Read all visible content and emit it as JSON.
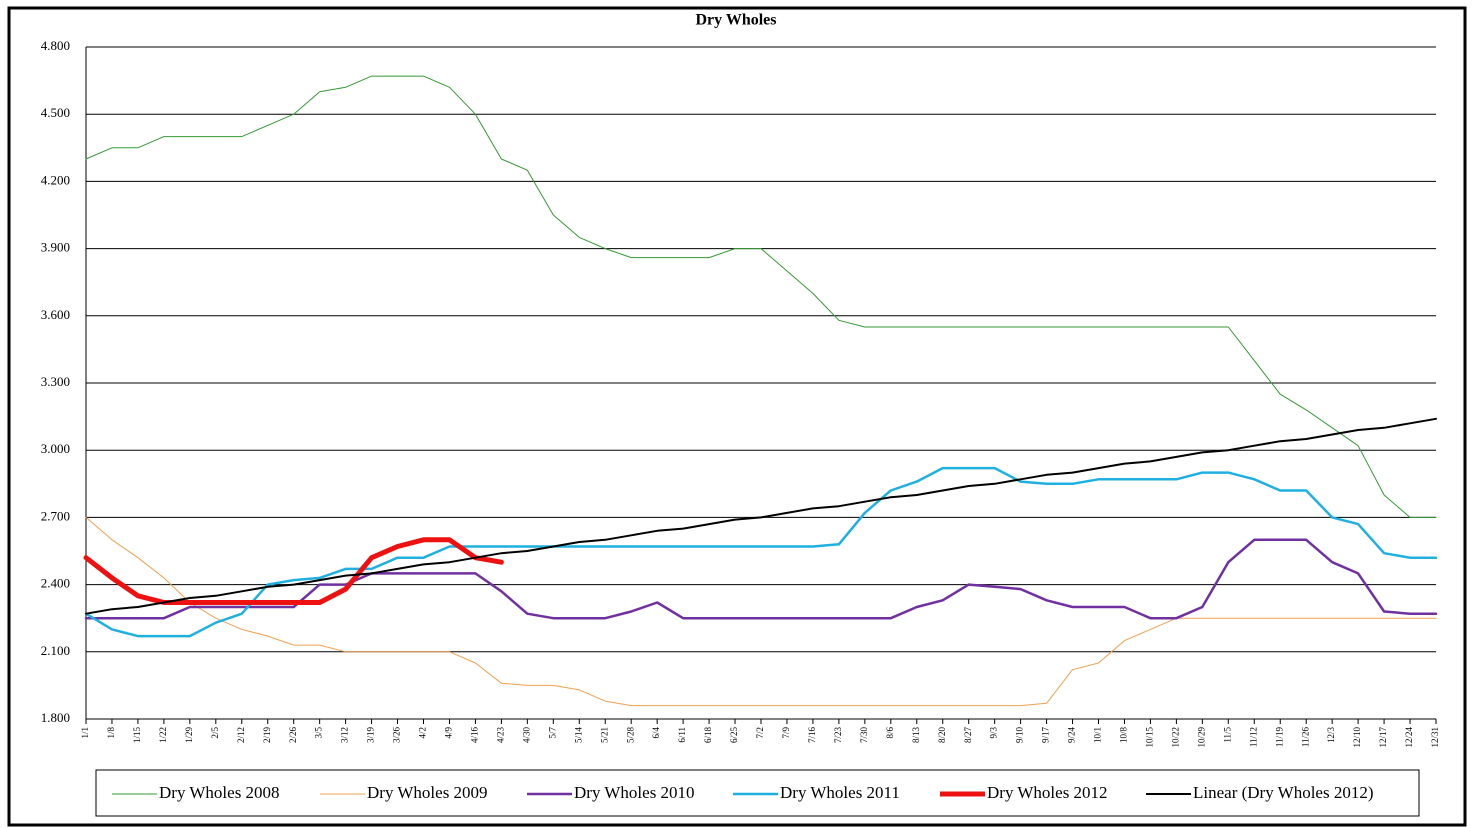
{
  "chart_data": {
    "type": "line",
    "title": "Dry Wholes",
    "categories": [
      "1/1",
      "1/8",
      "1/15",
      "1/22",
      "1/29",
      "2/5",
      "2/12",
      "2/19",
      "2/26",
      "3/5",
      "3/12",
      "3/19",
      "3/26",
      "4/2",
      "4/9",
      "4/16",
      "4/23",
      "4/30",
      "5/7",
      "5/14",
      "5/21",
      "5/28",
      "6/4",
      "6/11",
      "6/18",
      "6/25",
      "7/2",
      "7/9",
      "7/16",
      "7/23",
      "7/30",
      "8/6",
      "8/13",
      "8/20",
      "8/27",
      "9/3",
      "9/10",
      "9/17",
      "9/24",
      "10/1",
      "10/8",
      "10/15",
      "10/22",
      "10/29",
      "11/5",
      "11/12",
      "11/19",
      "11/26",
      "12/3",
      "12/10",
      "12/17",
      "12/24",
      "12/31"
    ],
    "ylim": [
      1.8,
      4.8
    ],
    "yticks": [
      {
        "value": 1.8,
        "label": "1.800"
      },
      {
        "value": 2.1,
        "label": "2.100"
      },
      {
        "value": 2.4,
        "label": "2.400"
      },
      {
        "value": 2.7,
        "label": "2.700"
      },
      {
        "value": 3.0,
        "label": "3.000"
      },
      {
        "value": 3.3,
        "label": "3.300"
      },
      {
        "value": 3.6,
        "label": "3.600"
      },
      {
        "value": 3.9,
        "label": "3.900"
      },
      {
        "value": 4.2,
        "label": "4.200"
      },
      {
        "value": 4.5,
        "label": "4.500"
      },
      {
        "value": 4.8,
        "label": "4.800"
      }
    ],
    "grid": true,
    "series": [
      {
        "name": "Dry Wholes 2008",
        "color": "#339933",
        "width": 1,
        "values": [
          4.3,
          4.35,
          4.35,
          4.4,
          4.4,
          4.4,
          4.4,
          4.45,
          4.5,
          4.6,
          4.62,
          4.67,
          4.67,
          4.67,
          4.62,
          4.5,
          4.3,
          4.25,
          4.05,
          3.95,
          3.9,
          3.86,
          3.86,
          3.86,
          3.86,
          3.9,
          3.9,
          3.8,
          3.7,
          3.58,
          3.55,
          3.55,
          3.55,
          3.55,
          3.55,
          3.55,
          3.55,
          3.55,
          3.55,
          3.55,
          3.55,
          3.55,
          3.55,
          3.55,
          3.55,
          3.4,
          3.25,
          3.18,
          3.1,
          3.02,
          2.8,
          2.7,
          2.7
        ]
      },
      {
        "name": "Dry Wholes 2009",
        "color": "#f0a050",
        "width": 1,
        "values": [
          2.7,
          2.6,
          2.52,
          2.43,
          2.32,
          2.25,
          2.2,
          2.17,
          2.13,
          2.13,
          2.1,
          2.1,
          2.1,
          2.1,
          2.1,
          2.05,
          1.96,
          1.95,
          1.95,
          1.93,
          1.88,
          1.86,
          1.86,
          1.86,
          1.86,
          1.86,
          1.86,
          1.86,
          1.86,
          1.86,
          1.86,
          1.86,
          1.86,
          1.86,
          1.86,
          1.86,
          1.86,
          1.87,
          2.02,
          2.05,
          2.15,
          2.2,
          2.25,
          2.25,
          2.25,
          2.25,
          2.25,
          2.25,
          2.25,
          2.25,
          2.25,
          2.25,
          2.25
        ]
      },
      {
        "name": "Dry Wholes 2010",
        "color": "#7030a0",
        "width": 2.5,
        "values": [
          2.25,
          2.25,
          2.25,
          2.25,
          2.3,
          2.3,
          2.3,
          2.3,
          2.3,
          2.4,
          2.4,
          2.45,
          2.45,
          2.45,
          2.45,
          2.45,
          2.37,
          2.27,
          2.25,
          2.25,
          2.25,
          2.28,
          2.32,
          2.25,
          2.25,
          2.25,
          2.25,
          2.25,
          2.25,
          2.25,
          2.25,
          2.25,
          2.3,
          2.33,
          2.4,
          2.39,
          2.38,
          2.33,
          2.3,
          2.3,
          2.3,
          2.25,
          2.25,
          2.3,
          2.5,
          2.6,
          2.6,
          2.6,
          2.5,
          2.45,
          2.28,
          2.27,
          2.27
        ]
      },
      {
        "name": "Dry Wholes 2011",
        "color": "#1fb0e0",
        "width": 2.5,
        "values": [
          2.27,
          2.2,
          2.17,
          2.17,
          2.17,
          2.23,
          2.27,
          2.4,
          2.42,
          2.43,
          2.47,
          2.47,
          2.52,
          2.52,
          2.57,
          2.57,
          2.57,
          2.57,
          2.57,
          2.57,
          2.57,
          2.57,
          2.57,
          2.57,
          2.57,
          2.57,
          2.57,
          2.57,
          2.57,
          2.58,
          2.72,
          2.82,
          2.86,
          2.92,
          2.92,
          2.92,
          2.86,
          2.85,
          2.85,
          2.87,
          2.87,
          2.87,
          2.87,
          2.9,
          2.9,
          2.87,
          2.82,
          2.82,
          2.7,
          2.67,
          2.54,
          2.52,
          2.52
        ]
      },
      {
        "name": "Dry Wholes 2012",
        "color": "#ee1111",
        "width": 5,
        "values": [
          2.52,
          2.43,
          2.35,
          2.32,
          2.32,
          2.32,
          2.32,
          2.32,
          2.32,
          2.32,
          2.38,
          2.52,
          2.57,
          2.6,
          2.6,
          2.52,
          2.5,
          null,
          null,
          null,
          null,
          null,
          null,
          null,
          null,
          null,
          null,
          null,
          null,
          null,
          null,
          null,
          null,
          null,
          null,
          null,
          null,
          null,
          null,
          null,
          null,
          null,
          null,
          null,
          null,
          null,
          null,
          null,
          null,
          null,
          null,
          null,
          null
        ]
      },
      {
        "name": "Linear (Dry Wholes 2012)",
        "color": "#000000",
        "width": 2,
        "values": [
          2.27,
          2.29,
          2.3,
          2.32,
          2.34,
          2.35,
          2.37,
          2.39,
          2.4,
          2.42,
          2.44,
          2.45,
          2.47,
          2.49,
          2.5,
          2.52,
          2.54,
          2.55,
          2.57,
          2.59,
          2.6,
          2.62,
          2.64,
          2.65,
          2.67,
          2.69,
          2.7,
          2.72,
          2.74,
          2.75,
          2.77,
          2.79,
          2.8,
          2.82,
          2.84,
          2.85,
          2.87,
          2.89,
          2.9,
          2.92,
          2.94,
          2.95,
          2.97,
          2.99,
          3.0,
          3.02,
          3.04,
          3.05,
          3.07,
          3.09,
          3.1,
          3.12,
          3.14
        ]
      }
    ]
  }
}
